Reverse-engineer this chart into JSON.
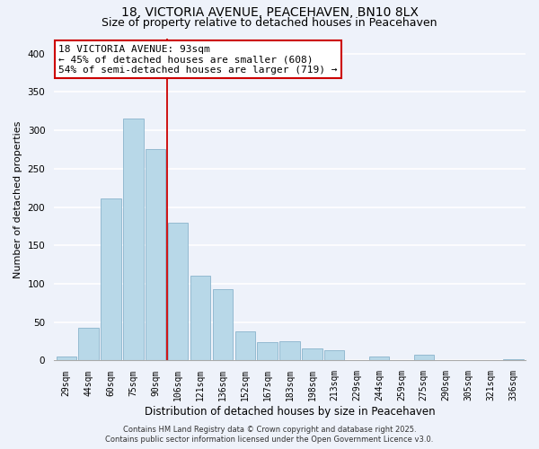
{
  "title_line1": "18, VICTORIA AVENUE, PEACEHAVEN, BN10 8LX",
  "title_line2": "Size of property relative to detached houses in Peacehaven",
  "xlabel": "Distribution of detached houses by size in Peacehaven",
  "ylabel": "Number of detached properties",
  "categories": [
    "29sqm",
    "44sqm",
    "60sqm",
    "75sqm",
    "90sqm",
    "106sqm",
    "121sqm",
    "136sqm",
    "152sqm",
    "167sqm",
    "183sqm",
    "198sqm",
    "213sqm",
    "229sqm",
    "244sqm",
    "259sqm",
    "275sqm",
    "290sqm",
    "305sqm",
    "321sqm",
    "336sqm"
  ],
  "values": [
    5,
    43,
    211,
    315,
    275,
    180,
    110,
    93,
    38,
    24,
    25,
    16,
    13,
    0,
    5,
    0,
    7,
    0,
    0,
    0,
    2
  ],
  "bar_color": "#b8d8e8",
  "bar_edge_color": "#8ab4cc",
  "vline_x": 4.5,
  "vline_color": "#cc0000",
  "annotation_title": "18 VICTORIA AVENUE: 93sqm",
  "annotation_line2": "← 45% of detached houses are smaller (608)",
  "annotation_line3": "54% of semi-detached houses are larger (719) →",
  "annotation_box_facecolor": "#ffffff",
  "annotation_box_edgecolor": "#cc0000",
  "ylim": [
    0,
    420
  ],
  "yticks": [
    0,
    50,
    100,
    150,
    200,
    250,
    300,
    350,
    400
  ],
  "footnote1": "Contains HM Land Registry data © Crown copyright and database right 2025.",
  "footnote2": "Contains public sector information licensed under the Open Government Licence v3.0.",
  "background_color": "#eef2fa",
  "grid_color": "#ffffff",
  "title_fontsize": 10,
  "subtitle_fontsize": 9,
  "tick_fontsize": 7,
  "ylabel_fontsize": 8,
  "xlabel_fontsize": 8.5,
  "annotation_fontsize": 8,
  "footnote_fontsize": 6
}
